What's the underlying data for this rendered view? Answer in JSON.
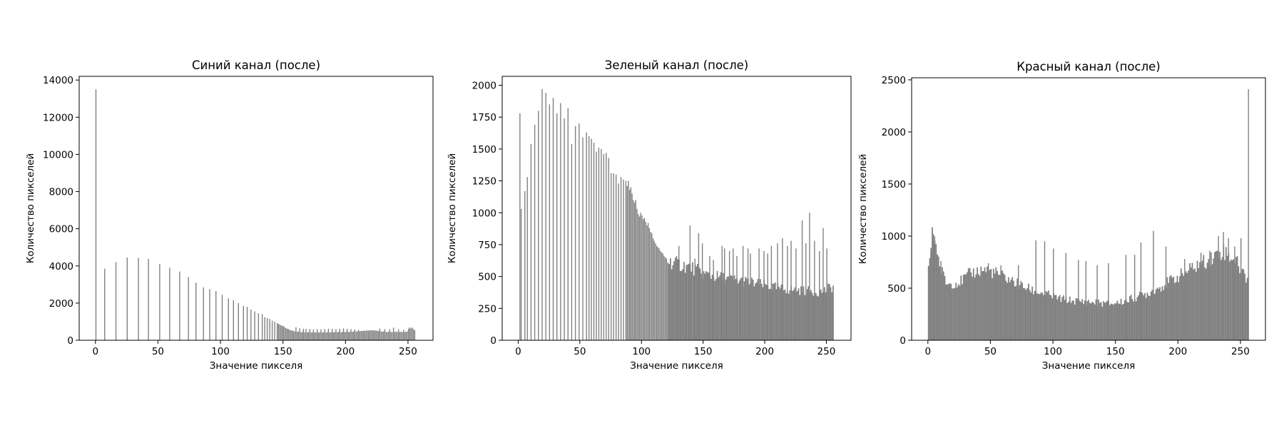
{
  "chart_data": [
    {
      "type": "bar",
      "title": "Синий канал (после)",
      "xlabel": "Значение пикселя",
      "ylabel": "Количество пикселей",
      "xlim": [
        -13,
        270
      ],
      "ylim": [
        0,
        14200
      ],
      "xticks": [
        0,
        50,
        100,
        150,
        200,
        250
      ],
      "yticks": [
        0,
        2000,
        4000,
        6000,
        8000,
        10000,
        12000,
        14000
      ],
      "bar_color": "#808080",
      "bars": [
        [
          0,
          13500
        ],
        [
          7,
          3850
        ],
        [
          16,
          4200
        ],
        [
          25,
          4450
        ],
        [
          34,
          4430
        ],
        [
          42,
          4380
        ],
        [
          51,
          4100
        ],
        [
          59,
          3900
        ],
        [
          67,
          3700
        ],
        [
          74,
          3400
        ],
        [
          80,
          3100
        ],
        [
          86,
          2850
        ],
        [
          91,
          2750
        ],
        [
          96,
          2650
        ],
        [
          101,
          2450
        ],
        [
          106,
          2250
        ],
        [
          110,
          2150
        ],
        [
          114,
          2000
        ],
        [
          118,
          1850
        ],
        [
          121,
          1800
        ],
        [
          124,
          1650
        ],
        [
          127,
          1550
        ],
        [
          130,
          1450
        ],
        [
          133,
          1400
        ],
        [
          135,
          1250
        ],
        [
          137,
          1200
        ],
        [
          139,
          1150
        ],
        [
          141,
          1050
        ],
        [
          143,
          1000
        ],
        [
          145,
          920
        ],
        [
          146,
          880
        ],
        [
          147,
          850
        ],
        [
          148,
          800
        ],
        [
          149,
          780
        ],
        [
          150,
          760
        ],
        [
          151,
          700
        ],
        [
          152,
          650
        ],
        [
          153,
          620
        ],
        [
          154,
          600
        ],
        [
          155,
          560
        ],
        [
          156,
          540
        ],
        [
          157,
          520
        ],
        [
          158,
          500
        ],
        [
          159,
          480
        ],
        [
          160,
          700
        ],
        [
          161,
          450
        ],
        [
          162,
          470
        ],
        [
          163,
          640
        ],
        [
          164,
          430
        ],
        [
          165,
          450
        ],
        [
          166,
          620
        ],
        [
          167,
          420
        ],
        [
          168,
          610
        ],
        [
          169,
          430
        ],
        [
          170,
          440
        ],
        [
          171,
          600
        ],
        [
          172,
          420
        ],
        [
          173,
          430
        ],
        [
          174,
          580
        ],
        [
          175,
          420
        ],
        [
          176,
          430
        ],
        [
          177,
          600
        ],
        [
          178,
          410
        ],
        [
          179,
          430
        ],
        [
          180,
          590
        ],
        [
          181,
          420
        ],
        [
          182,
          430
        ],
        [
          183,
          600
        ],
        [
          184,
          420
        ],
        [
          185,
          440
        ],
        [
          186,
          620
        ],
        [
          187,
          420
        ],
        [
          188,
          440
        ],
        [
          189,
          610
        ],
        [
          190,
          430
        ],
        [
          191,
          440
        ],
        [
          192,
          600
        ],
        [
          193,
          430
        ],
        [
          194,
          450
        ],
        [
          195,
          620
        ],
        [
          196,
          430
        ],
        [
          197,
          450
        ],
        [
          198,
          640
        ],
        [
          199,
          440
        ],
        [
          200,
          460
        ],
        [
          201,
          610
        ],
        [
          202,
          440
        ],
        [
          203,
          460
        ],
        [
          204,
          600
        ],
        [
          205,
          450
        ],
        [
          206,
          470
        ],
        [
          207,
          580
        ],
        [
          208,
          460
        ],
        [
          209,
          480
        ],
        [
          210,
          560
        ],
        [
          211,
          480
        ],
        [
          212,
          500
        ],
        [
          213,
          510
        ],
        [
          214,
          500
        ],
        [
          215,
          510
        ],
        [
          216,
          520
        ],
        [
          217,
          530
        ],
        [
          218,
          520
        ],
        [
          219,
          530
        ],
        [
          220,
          540
        ],
        [
          221,
          540
        ],
        [
          222,
          520
        ],
        [
          223,
          530
        ],
        [
          224,
          520
        ],
        [
          225,
          510
        ],
        [
          226,
          500
        ],
        [
          227,
          630
        ],
        [
          228,
          480
        ],
        [
          229,
          470
        ],
        [
          230,
          460
        ],
        [
          231,
          600
        ],
        [
          232,
          450
        ],
        [
          233,
          440
        ],
        [
          234,
          460
        ],
        [
          235,
          600
        ],
        [
          236,
          450
        ],
        [
          237,
          440
        ],
        [
          238,
          680
        ],
        [
          239,
          450
        ],
        [
          240,
          470
        ],
        [
          241,
          440
        ],
        [
          242,
          600
        ],
        [
          243,
          450
        ],
        [
          244,
          460
        ],
        [
          245,
          440
        ],
        [
          246,
          560
        ],
        [
          247,
          450
        ],
        [
          248,
          460
        ],
        [
          249,
          470
        ],
        [
          250,
          620
        ],
        [
          251,
          700
        ],
        [
          252,
          640
        ],
        [
          253,
          680
        ],
        [
          254,
          600
        ],
        [
          255,
          540
        ]
      ]
    },
    {
      "type": "bar",
      "title": "Зеленый канал (после)",
      "xlabel": "Значение пикселя",
      "ylabel": "Количество пикселей",
      "xlim": [
        -13,
        270
      ],
      "ylim": [
        0,
        2070
      ],
      "xticks": [
        0,
        50,
        100,
        150,
        200,
        250
      ],
      "yticks": [
        0,
        250,
        500,
        750,
        1000,
        1250,
        1500,
        1750,
        2000
      ],
      "bar_color": "#808080",
      "bars": [
        [
          1,
          1780
        ],
        [
          2,
          1030
        ],
        [
          5,
          1170
        ],
        [
          7,
          1280
        ],
        [
          10,
          1540
        ],
        [
          13,
          1690
        ],
        [
          16,
          1800
        ],
        [
          19,
          1970
        ],
        [
          22,
          1940
        ],
        [
          25,
          1850
        ],
        [
          28,
          1900
        ],
        [
          31,
          1780
        ],
        [
          34,
          1860
        ],
        [
          37,
          1740
        ],
        [
          40,
          1820
        ],
        [
          43,
          1540
        ],
        [
          46,
          1680
        ],
        [
          49,
          1700
        ],
        [
          52,
          1590
        ],
        [
          55,
          1630
        ],
        [
          57,
          1600
        ],
        [
          59,
          1580
        ],
        [
          61,
          1550
        ],
        [
          63,
          1480
        ],
        [
          65,
          1510
        ],
        [
          67,
          1500
        ],
        [
          69,
          1460
        ],
        [
          71,
          1470
        ],
        [
          73,
          1430
        ],
        [
          75,
          1310
        ],
        [
          77,
          1310
        ],
        [
          79,
          1300
        ],
        [
          81,
          1230
        ],
        [
          83,
          1280
        ],
        [
          85,
          1260
        ],
        [
          87,
          1250
        ],
        [
          88,
          1210
        ],
        [
          89,
          1250
        ],
        [
          90,
          1180
        ],
        [
          91,
          1200
        ],
        [
          92,
          1150
        ],
        [
          93,
          1100
        ],
        [
          94,
          1080
        ],
        [
          95,
          1100
        ],
        [
          96,
          1030
        ],
        [
          97,
          990
        ],
        [
          98,
          970
        ],
        [
          99,
          1000
        ],
        [
          100,
          980
        ],
        [
          101,
          950
        ],
        [
          102,
          960
        ],
        [
          103,
          930
        ],
        [
          104,
          900
        ],
        [
          105,
          920
        ],
        [
          106,
          880
        ],
        [
          107,
          850
        ],
        [
          108,
          840
        ],
        [
          109,
          800
        ],
        [
          110,
          780
        ],
        [
          111,
          760
        ],
        [
          112,
          740
        ],
        [
          113,
          730
        ],
        [
          114,
          720
        ],
        [
          115,
          700
        ],
        [
          116,
          690
        ],
        [
          117,
          680
        ],
        [
          118,
          660
        ],
        [
          119,
          650
        ],
        [
          120,
          640
        ]
      ],
      "dense_start": 121,
      "dense_end": 256,
      "dense_profile": [
        [
          121,
          620
        ],
        [
          140,
          570
        ],
        [
          150,
          520
        ],
        [
          170,
          480
        ],
        [
          185,
          460
        ],
        [
          200,
          430
        ],
        [
          215,
          400
        ],
        [
          230,
          390
        ],
        [
          245,
          380
        ],
        [
          255,
          420
        ]
      ],
      "spikes": [
        [
          130,
          740
        ],
        [
          139,
          900
        ],
        [
          143,
          640
        ],
        [
          146,
          840
        ],
        [
          149,
          760
        ],
        [
          155,
          660
        ],
        [
          158,
          630
        ],
        [
          165,
          740
        ],
        [
          167,
          720
        ],
        [
          171,
          700
        ],
        [
          174,
          720
        ],
        [
          177,
          660
        ],
        [
          182,
          740
        ],
        [
          186,
          720
        ],
        [
          188,
          680
        ],
        [
          195,
          720
        ],
        [
          199,
          700
        ],
        [
          202,
          680
        ],
        [
          205,
          740
        ],
        [
          210,
          760
        ],
        [
          214,
          800
        ],
        [
          218,
          740
        ],
        [
          221,
          780
        ],
        [
          225,
          720
        ],
        [
          230,
          940
        ],
        [
          233,
          760
        ],
        [
          236,
          1000
        ],
        [
          240,
          780
        ],
        [
          244,
          700
        ],
        [
          247,
          880
        ],
        [
          250,
          720
        ],
        [
          255,
          240
        ]
      ]
    },
    {
      "type": "bar",
      "title": "Красный канал (после)",
      "xlabel": "Значение пикселя",
      "ylabel": "Количество пикселей",
      "xlim": [
        -13,
        270
      ],
      "ylim": [
        0,
        2520
      ],
      "xticks": [
        0,
        50,
        100,
        150,
        200,
        250
      ],
      "yticks": [
        0,
        500,
        1000,
        1500,
        2000,
        2500
      ],
      "bar_color": "#808080",
      "bars": [],
      "dense_start": 0,
      "dense_end": 256,
      "dense_profile": [
        [
          0,
          690
        ],
        [
          3,
          1000
        ],
        [
          6,
          950
        ],
        [
          9,
          700
        ],
        [
          15,
          540
        ],
        [
          25,
          560
        ],
        [
          35,
          650
        ],
        [
          45,
          680
        ],
        [
          55,
          640
        ],
        [
          65,
          580
        ],
        [
          75,
          520
        ],
        [
          85,
          470
        ],
        [
          95,
          440
        ],
        [
          105,
          400
        ],
        [
          115,
          380
        ],
        [
          125,
          370
        ],
        [
          135,
          360
        ],
        [
          145,
          350
        ],
        [
          155,
          370
        ],
        [
          165,
          410
        ],
        [
          175,
          450
        ],
        [
          185,
          510
        ],
        [
          195,
          580
        ],
        [
          205,
          650
        ],
        [
          215,
          720
        ],
        [
          225,
          780
        ],
        [
          235,
          860
        ],
        [
          245,
          780
        ],
        [
          254,
          600
        ]
      ],
      "spikes": [
        [
          2,
          840
        ],
        [
          4,
          1020
        ],
        [
          5,
          1000
        ],
        [
          8,
          800
        ],
        [
          10,
          760
        ],
        [
          32,
          690
        ],
        [
          48,
          740
        ],
        [
          58,
          720
        ],
        [
          72,
          720
        ],
        [
          86,
          960
        ],
        [
          93,
          950
        ],
        [
          100,
          880
        ],
        [
          110,
          840
        ],
        [
          120,
          770
        ],
        [
          126,
          760
        ],
        [
          135,
          720
        ],
        [
          144,
          740
        ],
        [
          158,
          820
        ],
        [
          165,
          820
        ],
        [
          170,
          940
        ],
        [
          180,
          1050
        ],
        [
          190,
          900
        ],
        [
          205,
          780
        ],
        [
          218,
          840
        ],
        [
          225,
          860
        ],
        [
          232,
          1000
        ],
        [
          236,
          1040
        ],
        [
          240,
          980
        ],
        [
          245,
          900
        ],
        [
          250,
          980
        ],
        [
          252,
          560
        ],
        [
          256,
          2410
        ]
      ]
    }
  ]
}
